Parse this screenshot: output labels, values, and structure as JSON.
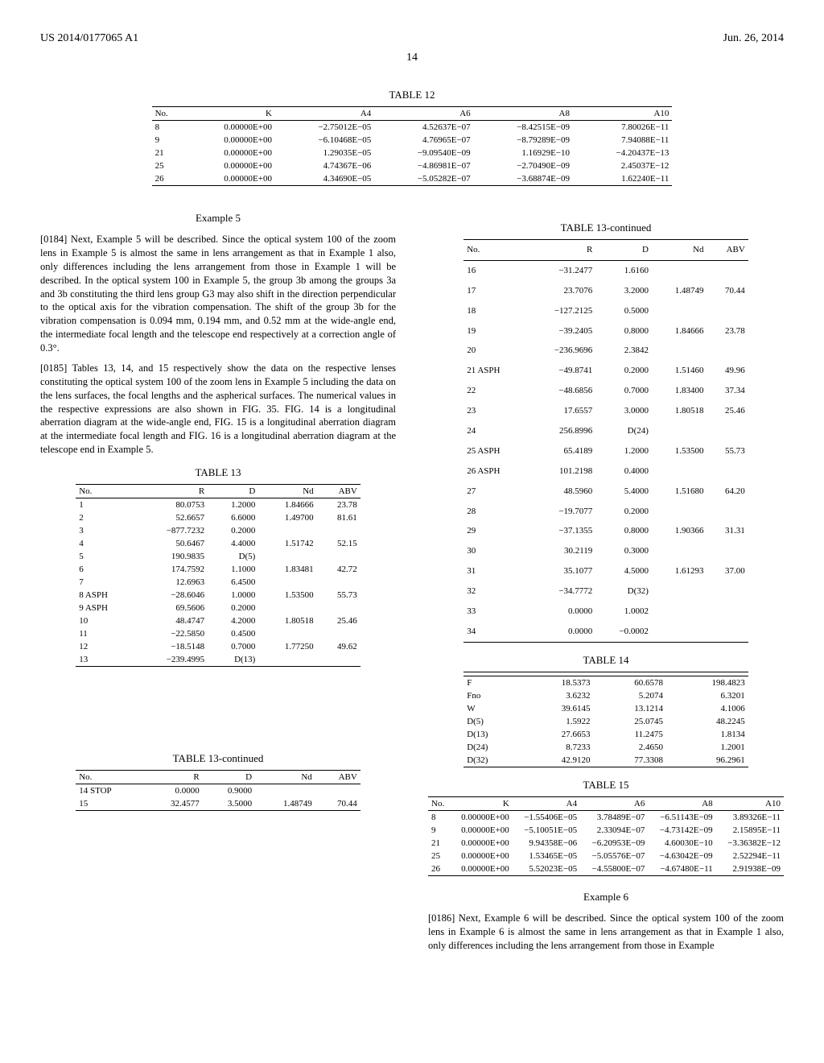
{
  "header": {
    "patent_no": "US 2014/0177065 A1",
    "date": "Jun. 26, 2014",
    "page": "14"
  },
  "table12": {
    "caption": "TABLE 12",
    "columns": [
      "No.",
      "K",
      "A4",
      "A6",
      "A8",
      "A10"
    ],
    "rows": [
      [
        "8",
        "0.00000E+00",
        "−2.75012E−05",
        "4.52637E−07",
        "−8.42515E−09",
        "7.80026E−11"
      ],
      [
        "9",
        "0.00000E+00",
        "−6.10468E−05",
        "4.76965E−07",
        "−8.79289E−09",
        "7.94088E−11"
      ],
      [
        "21",
        "0.00000E+00",
        "1.29035E−05",
        "−9.09540E−09",
        "1.16929E−10",
        "−4.20437E−13"
      ],
      [
        "25",
        "0.00000E+00",
        "4.74367E−06",
        "−4.86981E−07",
        "−2.70490E−09",
        "2.45037E−12"
      ],
      [
        "26",
        "0.00000E+00",
        "4.34690E−05",
        "−5.05282E−07",
        "−3.68874E−09",
        "1.62240E−11"
      ]
    ]
  },
  "example5": {
    "title": "Example 5",
    "p184": "[0184]   Next, Example 5 will be described. Since the optical system 100 of the zoom lens in Example 5 is almost the same in lens arrangement as that in Example 1 also, only differences including the lens arrangement from those in Example 1 will be described. In the optical system 100 in Example 5, the group 3b among the groups 3a and 3b constituting the third lens group G3 may also shift in the direction perpendicular to the optical axis for the vibration compensation. The shift of the group 3b for the vibration compensation is 0.094 mm, 0.194 mm, and 0.52 mm at the wide-angle end, the intermediate focal length and the telescope end respectively at a correction angle of 0.3°.",
    "p185": "[0185]   Tables 13, 14, and 15 respectively show the data on the respective lenses constituting the optical system 100 of the zoom lens in Example 5 including the data on the lens surfaces, the focal lengths and the aspherical surfaces. The numerical values in the respective expressions are also shown in FIG. 35. FIG. 14 is a longitudinal aberration diagram at the wide-angle end, FIG. 15 is a longitudinal aberration diagram at the intermediate focal length and FIG. 16 is a longitudinal aberration diagram at the telescope end in Example 5."
  },
  "table13a": {
    "caption": "TABLE 13",
    "columns": [
      "No.",
      "R",
      "D",
      "Nd",
      "ABV"
    ],
    "rows": [
      [
        "1",
        "80.0753",
        "1.2000",
        "1.84666",
        "23.78"
      ],
      [
        "2",
        "52.6657",
        "6.6000",
        "1.49700",
        "81.61"
      ],
      [
        "3",
        "−877.7232",
        "0.2000",
        "",
        ""
      ],
      [
        "4",
        "50.6467",
        "4.4000",
        "1.51742",
        "52.15"
      ],
      [
        "5",
        "190.9835",
        "D(5)",
        "",
        ""
      ],
      [
        "6",
        "174.7592",
        "1.1000",
        "1.83481",
        "42.72"
      ],
      [
        "7",
        "12.6963",
        "6.4500",
        "",
        ""
      ],
      [
        "8 ASPH",
        "−28.6046",
        "1.0000",
        "1.53500",
        "55.73"
      ],
      [
        "9 ASPH",
        "69.5606",
        "0.2000",
        "",
        ""
      ],
      [
        "10",
        "48.4747",
        "4.2000",
        "1.80518",
        "25.46"
      ],
      [
        "11",
        "−22.5850",
        "0.4500",
        "",
        ""
      ],
      [
        "12",
        "−18.5148",
        "0.7000",
        "1.77250",
        "49.62"
      ],
      [
        "13",
        "−239.4995",
        "D(13)",
        "",
        ""
      ]
    ]
  },
  "table13b": {
    "caption": "TABLE 13-continued",
    "columns": [
      "No.",
      "R",
      "D",
      "Nd",
      "ABV"
    ],
    "rows": [
      [
        "14 STOP",
        "0.0000",
        "0.9000",
        "",
        ""
      ],
      [
        "15",
        "32.4577",
        "3.5000",
        "1.48749",
        "70.44"
      ]
    ]
  },
  "table13c": {
    "caption": "TABLE 13-continued",
    "columns": [
      "No.",
      "R",
      "D",
      "Nd",
      "ABV"
    ],
    "rows": [
      [
        "16",
        "−31.2477",
        "1.6160",
        "",
        ""
      ],
      [
        "17",
        "23.7076",
        "3.2000",
        "1.48749",
        "70.44"
      ],
      [
        "18",
        "−127.2125",
        "0.5000",
        "",
        ""
      ],
      [
        "19",
        "−39.2405",
        "0.8000",
        "1.84666",
        "23.78"
      ],
      [
        "20",
        "−236.9696",
        "2.3842",
        "",
        ""
      ],
      [
        "21 ASPH",
        "−49.8741",
        "0.2000",
        "1.51460",
        "49.96"
      ],
      [
        "22",
        "−48.6856",
        "0.7000",
        "1.83400",
        "37.34"
      ],
      [
        "23",
        "17.6557",
        "3.0000",
        "1.80518",
        "25.46"
      ],
      [
        "24",
        "256.8996",
        "D(24)",
        "",
        ""
      ],
      [
        "25 ASPH",
        "65.4189",
        "1.2000",
        "1.53500",
        "55.73"
      ],
      [
        "26 ASPH",
        "101.2198",
        "0.4000",
        "",
        ""
      ],
      [
        "27",
        "48.5960",
        "5.4000",
        "1.51680",
        "64.20"
      ],
      [
        "28",
        "−19.7077",
        "0.2000",
        "",
        ""
      ],
      [
        "29",
        "−37.1355",
        "0.8000",
        "1.90366",
        "31.31"
      ],
      [
        "30",
        "30.2119",
        "0.3000",
        "",
        ""
      ],
      [
        "31",
        "35.1077",
        "4.5000",
        "1.61293",
        "37.00"
      ],
      [
        "32",
        "−34.7772",
        "D(32)",
        "",
        ""
      ],
      [
        "33",
        "0.0000",
        "1.0002",
        "",
        ""
      ],
      [
        "34",
        "0.0000",
        "−0.0002",
        "",
        ""
      ]
    ]
  },
  "table14": {
    "caption": "TABLE 14",
    "rows": [
      [
        "F",
        "18.5373",
        "60.6578",
        "198.4823"
      ],
      [
        "Fno",
        "3.6232",
        "5.2074",
        "6.3201"
      ],
      [
        "W",
        "39.6145",
        "13.1214",
        "4.1006"
      ],
      [
        "D(5)",
        "1.5922",
        "25.0745",
        "48.2245"
      ],
      [
        "D(13)",
        "27.6653",
        "11.2475",
        "1.8134"
      ],
      [
        "D(24)",
        "8.7233",
        "2.4650",
        "1.2001"
      ],
      [
        "D(32)",
        "42.9120",
        "77.3308",
        "96.2961"
      ]
    ]
  },
  "table15": {
    "caption": "TABLE 15",
    "columns": [
      "No.",
      "K",
      "A4",
      "A6",
      "A8",
      "A10"
    ],
    "rows": [
      [
        "8",
        "0.00000E+00",
        "−1.55406E−05",
        "3.78489E−07",
        "−6.51143E−09",
        "3.89326E−11"
      ],
      [
        "9",
        "0.00000E+00",
        "−5.10051E−05",
        "2.33094E−07",
        "−4.73142E−09",
        "2.15895E−11"
      ],
      [
        "21",
        "0.00000E+00",
        "9.94358E−06",
        "−6.20953E−09",
        "4.60030E−10",
        "−3.36382E−12"
      ],
      [
        "25",
        "0.00000E+00",
        "1.53465E−05",
        "−5.05576E−07",
        "−4.63042E−09",
        "2.52294E−11"
      ],
      [
        "26",
        "0.00000E+00",
        "5.52023E−05",
        "−4.55800E−07",
        "−4.67480E−11",
        "2.91938E−09"
      ]
    ]
  },
  "example6": {
    "title": "Example 6",
    "p186": "[0186]   Next, Example 6 will be described. Since the optical system 100 of the zoom lens in Example 6 is almost the same in lens arrangement as that in Example 1 also, only differences including the lens arrangement from those in Example"
  }
}
